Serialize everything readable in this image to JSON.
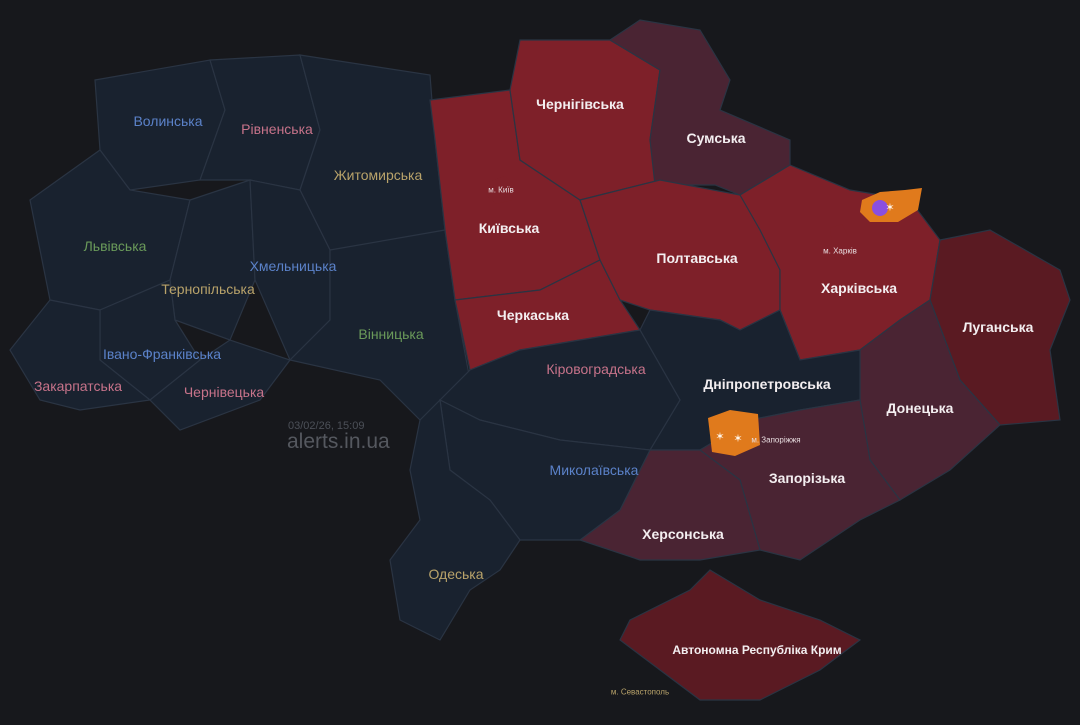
{
  "timestamp": "03/02/26, 15:09",
  "brand": "alerts.in.ua",
  "colors": {
    "background": "#17181c",
    "no_alert": "#19222f",
    "alert": "#7e2029",
    "alert_partial": "#4a2433",
    "alert_long": "#5a1a22",
    "strike": "#e07a1c",
    "drone": "#8a4fe0"
  },
  "regions": [
    {
      "id": "volynska",
      "name": "Волинська",
      "status": "none",
      "label_color": "#5b82c9"
    },
    {
      "id": "rivnenska",
      "name": "Рівненська",
      "status": "none",
      "label_color": "#c7738a"
    },
    {
      "id": "zhytomyrska",
      "name": "Житомирська",
      "status": "none",
      "label_color": "#b9a36a"
    },
    {
      "id": "lvivska",
      "name": "Львівська",
      "status": "none",
      "label_color": "#6a9a5a"
    },
    {
      "id": "ternopilska",
      "name": "Тернопільська",
      "status": "none",
      "label_color": "#b9a36a"
    },
    {
      "id": "khmelnytska",
      "name": "Хмельницька",
      "status": "none",
      "label_color": "#5b82c9"
    },
    {
      "id": "vinnytska",
      "name": "Вінницька",
      "status": "none",
      "label_color": "#6a9a5a"
    },
    {
      "id": "ivano-frankivska",
      "name": "Івано-Франківська",
      "status": "none",
      "label_color": "#5b82c9"
    },
    {
      "id": "zakarpatska",
      "name": "Закарпатська",
      "status": "none",
      "label_color": "#c7738a"
    },
    {
      "id": "chernivetska",
      "name": "Чернівецька",
      "status": "none",
      "label_color": "#c7738a"
    },
    {
      "id": "kyivska",
      "name": "Київська",
      "status": "alert",
      "label_color": "#ffffff"
    },
    {
      "id": "chernihivska",
      "name": "Чернігівська",
      "status": "alert",
      "label_color": "#ffffff"
    },
    {
      "id": "sumska",
      "name": "Сумська",
      "status": "partial",
      "label_color": "#ffffff"
    },
    {
      "id": "cherkaska",
      "name": "Черкаська",
      "status": "alert",
      "label_color": "#ffffff"
    },
    {
      "id": "poltavska",
      "name": "Полтавська",
      "status": "alert",
      "label_color": "#ffffff"
    },
    {
      "id": "kharkivska",
      "name": "Харківська",
      "status": "alert",
      "label_color": "#ffffff"
    },
    {
      "id": "luhanska",
      "name": "Луганська",
      "status": "long",
      "label_color": "#ffffff"
    },
    {
      "id": "donetska",
      "name": "Донецька",
      "status": "partial",
      "label_color": "#ffffff"
    },
    {
      "id": "dnipropetrovska",
      "name": "Дніпропетровська",
      "status": "none",
      "label_color": "#ffffff"
    },
    {
      "id": "zaporizka",
      "name": "Запорізька",
      "status": "partial",
      "label_color": "#ffffff"
    },
    {
      "id": "khersonska",
      "name": "Херсонська",
      "status": "partial",
      "label_color": "#ffffff"
    },
    {
      "id": "kirovohradska",
      "name": "Кіровоградська",
      "status": "none",
      "label_color": "#c7738a"
    },
    {
      "id": "mykolaivska",
      "name": "Миколаївська",
      "status": "none",
      "label_color": "#5b82c9"
    },
    {
      "id": "odeska",
      "name": "Одеська",
      "status": "none",
      "label_color": "#b9a36a"
    },
    {
      "id": "crimea",
      "name": "Автономна Республіка Крим",
      "status": "long",
      "label_color": "#ffffff"
    }
  ],
  "cities": [
    {
      "id": "kyiv",
      "name": "м. Київ",
      "status": "alert"
    },
    {
      "id": "kharkiv",
      "name": "м. Харків",
      "status": "alert"
    },
    {
      "id": "zaporizhzhia",
      "name": "м. Запоріжжя",
      "status": "strike"
    },
    {
      "id": "sevastopol",
      "name": "м. Севастополь",
      "status": "long",
      "label_color": "#b9a36a"
    }
  ]
}
